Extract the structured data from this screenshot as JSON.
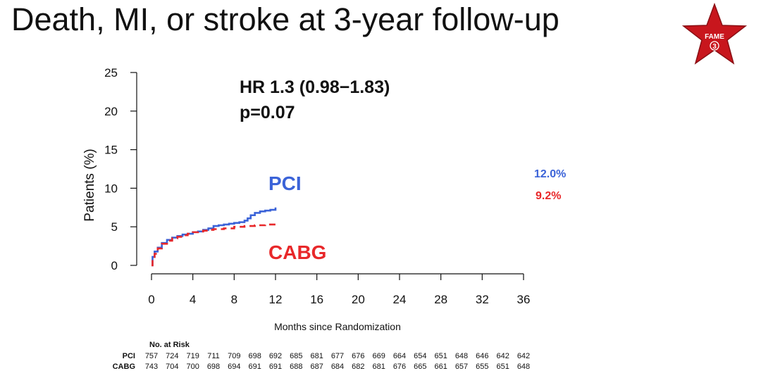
{
  "title": "Death, MI, or stroke at 3-year follow-up",
  "badge": {
    "text": "FAME",
    "number": "3",
    "color": "#c8161d",
    "icon": "star-icon"
  },
  "chart_data": {
    "type": "line",
    "title": "",
    "xlabel": "Months since Randomization",
    "ylabel": "Patients (%)",
    "xlim": [
      0,
      36
    ],
    "ylim": [
      0,
      25
    ],
    "xticks": [
      0,
      4,
      8,
      12,
      16,
      20,
      24,
      28,
      32,
      36
    ],
    "yticks": [
      0,
      5,
      10,
      15,
      20,
      25
    ],
    "grid": false,
    "annotations": {
      "hr": "HR 1.3 (0.98−1.83)",
      "p": "p=0.07"
    },
    "series": [
      {
        "name": "PCI",
        "color": "#3b63d8",
        "style": "solid",
        "end_label": "12.0%",
        "x": [
          0,
          0.1,
          0.3,
          0.6,
          1.0,
          1.5,
          2.0,
          2.5,
          3.0,
          3.5,
          4.0,
          4.5,
          5.0,
          5.5,
          6.0,
          6.5,
          7.0,
          7.5,
          8.0,
          8.5,
          9.0,
          9.3,
          9.6,
          10.0,
          10.5,
          11.0,
          11.5,
          12.0
        ],
        "y": [
          0,
          1.1,
          1.8,
          2.3,
          2.9,
          3.3,
          3.6,
          3.8,
          4.0,
          4.1,
          4.3,
          4.4,
          4.6,
          4.8,
          5.1,
          5.2,
          5.3,
          5.4,
          5.5,
          5.6,
          5.8,
          6.1,
          6.5,
          6.8,
          7.0,
          7.1,
          7.2,
          7.5
        ]
      },
      {
        "name": "CABG",
        "color": "#e8282a",
        "style": "dashed",
        "end_label": "9.2%",
        "x": [
          0,
          0.1,
          0.3,
          0.6,
          1.0,
          1.5,
          2.0,
          2.5,
          3.0,
          3.5,
          4.0,
          4.5,
          5.0,
          5.5,
          6.0,
          7.0,
          8.0,
          9.0,
          10.0,
          11.0,
          12.0
        ],
        "y": [
          0,
          0.8,
          1.5,
          2.2,
          2.8,
          3.2,
          3.5,
          3.7,
          3.9,
          4.1,
          4.3,
          4.4,
          4.5,
          4.6,
          4.7,
          4.8,
          5.0,
          5.1,
          5.2,
          5.3,
          5.3
        ]
      }
    ],
    "at_risk": {
      "title": "No. at Risk",
      "rows": [
        {
          "label": "PCI",
          "values": [
            "757",
            "724",
            "719",
            "711",
            "709",
            "698",
            "692",
            "685",
            "681",
            "677",
            "676",
            "669",
            "664",
            "654",
            "651",
            "648",
            "646",
            "642",
            "642"
          ]
        },
        {
          "label": "CABG",
          "values": [
            "743",
            "704",
            "700",
            "698",
            "694",
            "691",
            "691",
            "688",
            "687",
            "684",
            "682",
            "681",
            "676",
            "665",
            "661",
            "657",
            "655",
            "651",
            "648"
          ]
        }
      ]
    }
  }
}
